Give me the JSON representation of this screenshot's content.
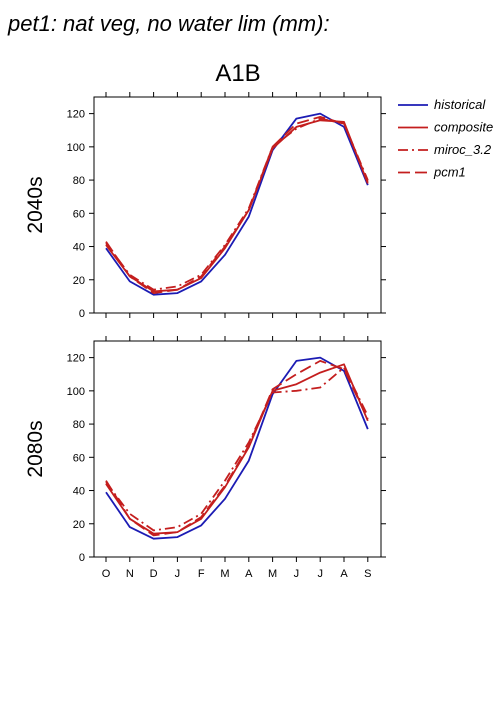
{
  "title": "pet1: nat veg, no water lim (mm):",
  "subtitle": "A1B",
  "chart_data": {
    "type": "line",
    "categories": [
      "O",
      "N",
      "D",
      "J",
      "F",
      "M",
      "A",
      "M",
      "J",
      "J",
      "A",
      "S"
    ],
    "ylim": [
      0,
      130
    ],
    "yticks": [
      0,
      20,
      40,
      60,
      80,
      100,
      120
    ],
    "legend_position": "top-right, outside plots",
    "grid": false,
    "legend": [
      {
        "name": "historical",
        "color": "#1c1cb4",
        "dash": "solid"
      },
      {
        "name": "composite",
        "color": "#c41e1e",
        "dash": "solid"
      },
      {
        "name": "miroc_3.2",
        "color": "#c41e1e",
        "dash": "dashdot"
      },
      {
        "name": "pcm1",
        "color": "#c41e1e",
        "dash": "dashed"
      }
    ],
    "panels": [
      {
        "label": "2040s",
        "series": [
          {
            "name": "historical",
            "values": [
              39,
              19,
              11,
              12,
              19,
              35,
              58,
              98,
              117,
              120,
              112,
              77
            ]
          },
          {
            "name": "composite",
            "values": [
              41,
              22,
              13,
              14,
              21,
              39,
              62,
              99,
              112,
              116,
              115,
              78
            ]
          },
          {
            "name": "miroc_3.2",
            "values": [
              42,
              23,
              14,
              16,
              23,
              41,
              63,
              100,
              111,
              117,
              114,
              80
            ]
          },
          {
            "name": "pcm1",
            "values": [
              43,
              22,
              12,
              14,
              22,
              40,
              62,
              100,
              114,
              118,
              114,
              79
            ]
          }
        ]
      },
      {
        "label": "2080s",
        "series": [
          {
            "name": "historical",
            "values": [
              39,
              18,
              11,
              12,
              19,
              35,
              58,
              98,
              118,
              120,
              112,
              77
            ]
          },
          {
            "name": "composite",
            "values": [
              44,
              23,
              14,
              15,
              23,
              42,
              66,
              100,
              104,
              111,
              116,
              82
            ]
          },
          {
            "name": "miroc_3.2",
            "values": [
              45,
              26,
              16,
              18,
              26,
              46,
              69,
              99,
              100,
              102,
              114,
              85
            ]
          },
          {
            "name": "pcm1",
            "values": [
              46,
              23,
              13,
              15,
              24,
              43,
              67,
              101,
              110,
              118,
              113,
              83
            ]
          }
        ]
      }
    ]
  }
}
